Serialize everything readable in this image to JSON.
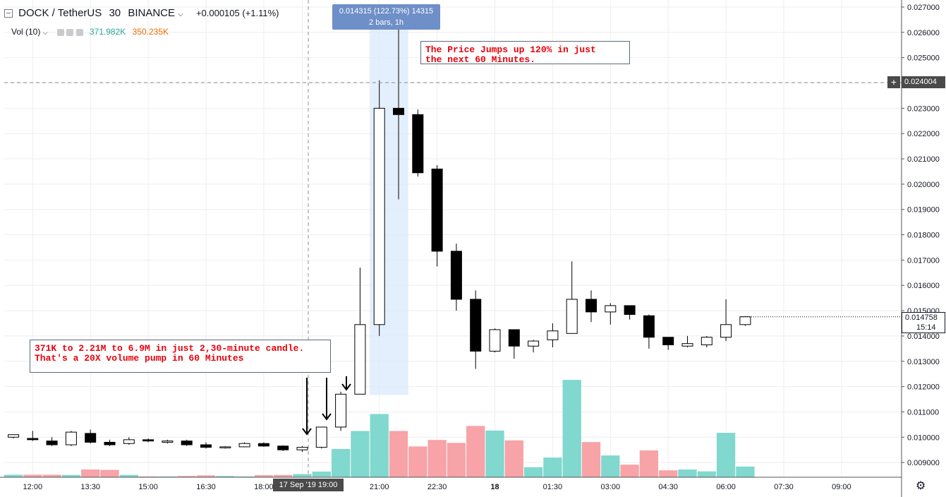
{
  "header": {
    "symbol": "DOCK / TetherUS",
    "interval": "30",
    "exchange": "BINANCE",
    "change": "+0.000105 (+1.11%)",
    "vol_label": "Vol (10)",
    "vol_value_1": "371.982K",
    "vol_value_2": "350.235K"
  },
  "tooltip": {
    "line1": "0.014315 (122.73%) 14315",
    "line2": "2 bars, 1h"
  },
  "annotations": {
    "price_note": "The Price Jumps up 120% in just\nthe next 60 Minutes.",
    "volume_note": "371K to 2.21M to 6.9M in just 2,30-minute candle.\nThat's a 20X volume pump in 60 Minutes"
  },
  "price_axis": {
    "crosshair_label": "0.024004",
    "last_price_label": "0.014758",
    "countdown_label": "15:14"
  },
  "time_axis": {
    "crosshair_label": "17 Sep '19  19:00"
  },
  "colors": {
    "up_body": "#ffffff",
    "down_body": "#000000",
    "volume_up": "#80d8cf",
    "volume_down": "#f7a3a7",
    "selection": "#d9eafb",
    "tooltip_bg": "#6f8fc8",
    "annotation_text": "#e8000b",
    "grid": "#eeeeee"
  },
  "chart_data": {
    "type": "candlestick",
    "title": "DOCK / TetherUS 30 BINANCE",
    "y_axis_ticks": [
      "0.009000",
      "0.010000",
      "0.011000",
      "0.012000",
      "0.013000",
      "0.014000",
      "0.015000",
      "0.016000",
      "0.017000",
      "0.018000",
      "0.019000",
      "0.020000",
      "0.021000",
      "0.022000",
      "0.023000",
      "0.024000",
      "0.025000",
      "0.026000",
      "0.027000"
    ],
    "ylim": [
      0.0084,
      0.0273
    ],
    "x_axis_labels": [
      "12:00",
      "13:30",
      "15:00",
      "16:30",
      "18:00",
      "19:00",
      "21:00",
      "22:30",
      "18",
      "01:30",
      "03:00",
      "04:30",
      "06:00",
      "07:30",
      "09:00"
    ],
    "x_axis_label_index": [
      1,
      4,
      7,
      10,
      13,
      15,
      19,
      22,
      25,
      28,
      31,
      34,
      37,
      40,
      43
    ],
    "candles": [
      {
        "o": 0.01,
        "h": 0.0101,
        "l": 0.00995,
        "c": 0.0101
      },
      {
        "o": 0.00995,
        "h": 0.01025,
        "l": 0.00985,
        "c": 0.0099
      },
      {
        "o": 0.00985,
        "h": 0.01,
        "l": 0.00965,
        "c": 0.0097
      },
      {
        "o": 0.0097,
        "h": 0.01025,
        "l": 0.00965,
        "c": 0.0102
      },
      {
        "o": 0.01015,
        "h": 0.0103,
        "l": 0.00975,
        "c": 0.0098
      },
      {
        "o": 0.0098,
        "h": 0.0099,
        "l": 0.00965,
        "c": 0.0097
      },
      {
        "o": 0.00975,
        "h": 0.01,
        "l": 0.0097,
        "c": 0.0099
      },
      {
        "o": 0.0099,
        "h": 0.00995,
        "l": 0.0098,
        "c": 0.00985
      },
      {
        "o": 0.0098,
        "h": 0.0099,
        "l": 0.00975,
        "c": 0.00985
      },
      {
        "o": 0.00985,
        "h": 0.0099,
        "l": 0.00965,
        "c": 0.0097
      },
      {
        "o": 0.0097,
        "h": 0.0098,
        "l": 0.00955,
        "c": 0.0096
      },
      {
        "o": 0.0096,
        "h": 0.00965,
        "l": 0.00955,
        "c": 0.00962
      },
      {
        "o": 0.00962,
        "h": 0.0098,
        "l": 0.0096,
        "c": 0.00975
      },
      {
        "o": 0.00975,
        "h": 0.0098,
        "l": 0.00962,
        "c": 0.00965
      },
      {
        "o": 0.00965,
        "h": 0.00968,
        "l": 0.00945,
        "c": 0.0095
      },
      {
        "o": 0.0095,
        "h": 0.00965,
        "l": 0.00942,
        "c": 0.0096
      },
      {
        "o": 0.0096,
        "h": 0.0104,
        "l": 0.00955,
        "c": 0.0104
      },
      {
        "o": 0.0104,
        "h": 0.0118,
        "l": 0.01025,
        "c": 0.0117
      },
      {
        "o": 0.0117,
        "h": 0.0167,
        "l": 0.0117,
        "c": 0.01445
      },
      {
        "o": 0.01445,
        "h": 0.0241,
        "l": 0.014,
        "c": 0.023
      },
      {
        "o": 0.023,
        "h": 0.0264,
        "l": 0.0194,
        "c": 0.02275
      },
      {
        "o": 0.02275,
        "h": 0.02295,
        "l": 0.0203,
        "c": 0.02045
      },
      {
        "o": 0.0206,
        "h": 0.02075,
        "l": 0.01675,
        "c": 0.01735
      },
      {
        "o": 0.01735,
        "h": 0.01765,
        "l": 0.015,
        "c": 0.01545
      },
      {
        "o": 0.01545,
        "h": 0.0158,
        "l": 0.0127,
        "c": 0.0134
      },
      {
        "o": 0.0134,
        "h": 0.0143,
        "l": 0.01335,
        "c": 0.01425
      },
      {
        "o": 0.01425,
        "h": 0.01425,
        "l": 0.0131,
        "c": 0.0136
      },
      {
        "o": 0.0136,
        "h": 0.01385,
        "l": 0.01335,
        "c": 0.0138
      },
      {
        "o": 0.01385,
        "h": 0.0145,
        "l": 0.01355,
        "c": 0.0142
      },
      {
        "o": 0.0141,
        "h": 0.01695,
        "l": 0.0141,
        "c": 0.01545
      },
      {
        "o": 0.01545,
        "h": 0.0158,
        "l": 0.01455,
        "c": 0.01495
      },
      {
        "o": 0.01495,
        "h": 0.0153,
        "l": 0.01445,
        "c": 0.0152
      },
      {
        "o": 0.0152,
        "h": 0.0152,
        "l": 0.01465,
        "c": 0.01485
      },
      {
        "o": 0.0148,
        "h": 0.01485,
        "l": 0.0135,
        "c": 0.01395
      },
      {
        "o": 0.01395,
        "h": 0.01395,
        "l": 0.01345,
        "c": 0.01365
      },
      {
        "o": 0.0136,
        "h": 0.014,
        "l": 0.01355,
        "c": 0.0137
      },
      {
        "o": 0.01365,
        "h": 0.014,
        "l": 0.01355,
        "c": 0.01395
      },
      {
        "o": 0.01395,
        "h": 0.01545,
        "l": 0.0138,
        "c": 0.01445
      },
      {
        "o": 0.01445,
        "h": 0.01478,
        "l": 0.0144,
        "c": 0.01476
      }
    ],
    "volume_thousands": [
      120,
      120,
      120,
      110,
      370,
      350,
      110,
      40,
      40,
      60,
      90,
      60,
      40,
      100,
      110,
      150,
      270,
      1350,
      2210,
      3020,
      2210,
      1470,
      1780,
      1640,
      2450,
      2230,
      1760,
      480,
      940,
      4650,
      1680,
      1040,
      600,
      1280,
      330,
      370,
      280,
      2120,
      510
    ],
    "volume_up": [
      true,
      false,
      false,
      true,
      false,
      false,
      true,
      false,
      true,
      false,
      false,
      true,
      true,
      false,
      false,
      true,
      true,
      true,
      true,
      true,
      false,
      false,
      false,
      false,
      false,
      true,
      false,
      true,
      true,
      true,
      false,
      true,
      false,
      false,
      false,
      true,
      true,
      true,
      true
    ]
  }
}
